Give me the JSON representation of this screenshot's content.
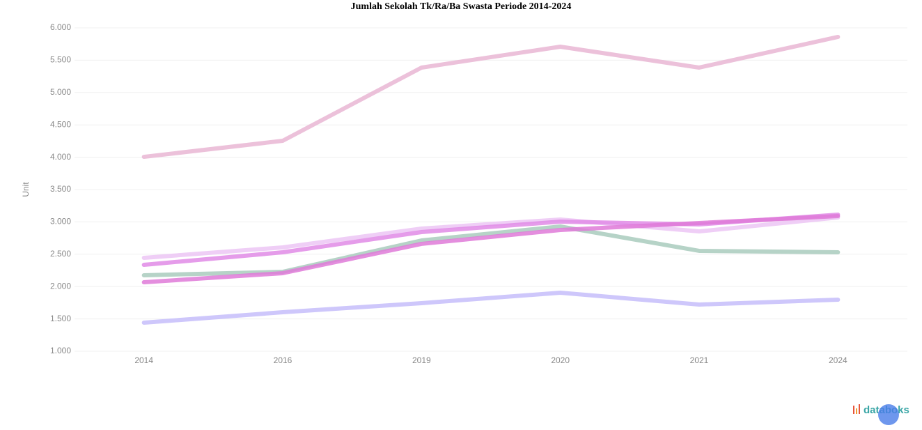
{
  "chart_data": {
    "type": "line",
    "title": "Jumlah Sekolah Tk/Ra/Ba Swasta Periode 2014-2024",
    "y_label": "Unit",
    "categories": [
      "2014",
      "2016",
      "2019",
      "2020",
      "2021",
      "2024"
    ],
    "series": [
      {
        "color": "#e9b6d3",
        "values": [
          4006,
          4254,
          5386,
          5709,
          5386,
          5860
        ]
      },
      {
        "color": "#ecc6f4",
        "values": [
          2444,
          2606,
          2897,
          3037,
          2853,
          3069
        ]
      },
      {
        "color": "#e08be6",
        "values": [
          2336,
          2530,
          2843,
          3004,
          2961,
          3112
        ]
      },
      {
        "color": "#a9cbbd",
        "values": [
          2175,
          2228,
          2713,
          2929,
          2552,
          2530
        ]
      },
      {
        "color": "#df7ad8",
        "values": [
          2067,
          2207,
          2660,
          2875,
          2983,
          3090
        ]
      },
      {
        "color": "#c6bdfa",
        "values": [
          1442,
          1603,
          1744,
          1905,
          1722,
          1797
        ]
      }
    ],
    "ylim": [
      1000,
      6000
    ],
    "yticks": [
      {
        "value": 1000,
        "label": "1.000"
      },
      {
        "value": 1500,
        "label": "1.500"
      },
      {
        "value": 2000,
        "label": "2.000"
      },
      {
        "value": 2500,
        "label": "2.500"
      },
      {
        "value": 3000,
        "label": "3.000"
      },
      {
        "value": 3500,
        "label": "3.500"
      },
      {
        "value": 4000,
        "label": "4.000"
      },
      {
        "value": 4500,
        "label": "4.500"
      },
      {
        "value": 5000,
        "label": "5.000"
      },
      {
        "value": 5500,
        "label": "5.500"
      },
      {
        "value": 6000,
        "label": "6.000"
      }
    ],
    "grid": true,
    "logo": "databoks"
  }
}
